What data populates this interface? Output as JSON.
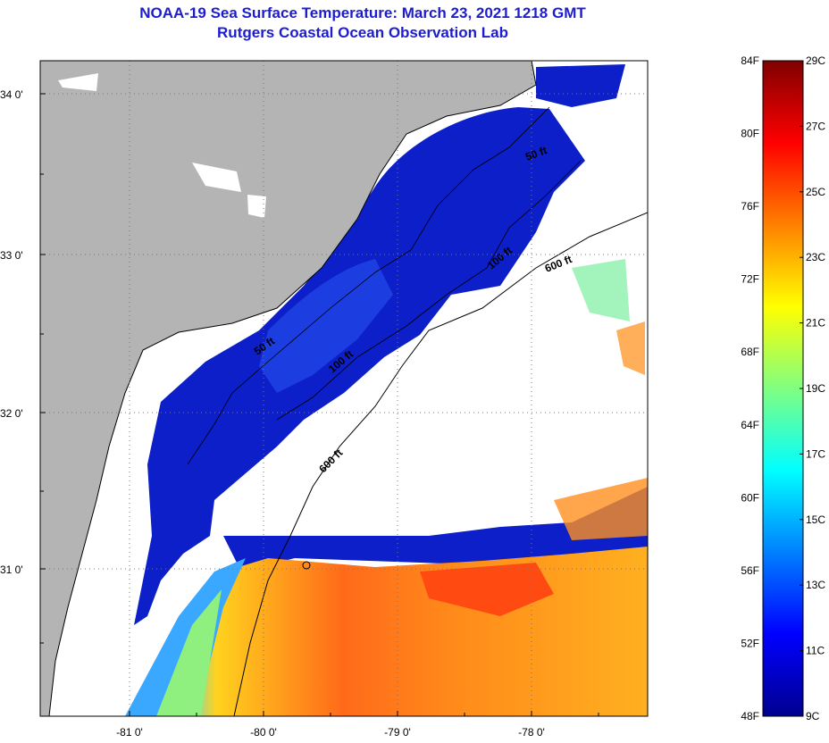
{
  "title": {
    "line1": "NOAA-19 Sea Surface Temperature:  March 23, 2021 1218 GMT",
    "line2": "Rutgers Coastal Ocean Observation Lab"
  },
  "map": {
    "longitude_ticks": [
      "-81 0'",
      "-80 0'",
      "-79 0'",
      "-78 0'"
    ],
    "latitude_ticks": [
      "34 0'",
      "33 0'",
      "32 0'",
      "31 0'"
    ],
    "isobath_labels": [
      "50 ft",
      "50 ft",
      "100 ft",
      "100 ft",
      "600 ft",
      "600 ft"
    ],
    "colors": {
      "land": "#b4b4b4",
      "no_data": "#ffffff",
      "cold_water": "#0c1fc8",
      "warm_water": "#ff6a1a"
    }
  },
  "colorbar": {
    "fahrenheit_labels": [
      "84F",
      "80F",
      "76F",
      "72F",
      "68F",
      "64F",
      "60F",
      "56F",
      "52F",
      "48F"
    ],
    "celsius_labels": [
      "29C",
      "27C",
      "25C",
      "23C",
      "21C",
      "19C",
      "17C",
      "15C",
      "13C",
      "11C",
      "9C"
    ],
    "colors": [
      "#00008f",
      "#0000ff",
      "#0080ff",
      "#00ffff",
      "#80ff80",
      "#ffff00",
      "#ff8000",
      "#ff0000",
      "#800000"
    ]
  }
}
